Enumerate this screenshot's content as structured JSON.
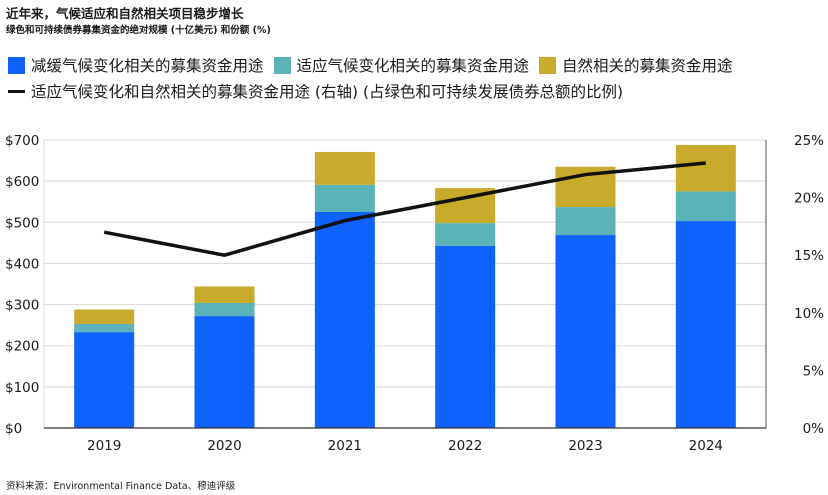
{
  "header": {
    "title": "近年来，气候适应和自然相关项目稳步增长",
    "subtitle": "绿色和可持续债券募集资金的绝对规模 (十亿美元) 和份额 (%)"
  },
  "legend": {
    "mitigation": "减缓气候变化相关的募集资金用途",
    "adaptation": "适应气候变化相关的募集资金用途",
    "nature": "自然相关的募集资金用途",
    "line": "适应气候变化和自然相关的募集资金用途 (右轴) (占绿色和可持续发展债券总额的比例)"
  },
  "source": "资料来源：Environmental Finance Data、穆迪评级",
  "colors": {
    "mitigation": "#0f62fe",
    "adaptation": "#5bb3b9",
    "nature": "#c9aa2a",
    "line": "#111111",
    "grid": "#d8d8d8"
  },
  "chart_data": {
    "type": "bar",
    "stacked": true,
    "categories": [
      "2019",
      "2020",
      "2021",
      "2022",
      "2023",
      "2024"
    ],
    "series": [
      {
        "name": "减缓气候变化相关的募集资金用途",
        "values": [
          233,
          272,
          525,
          443,
          469,
          503
        ]
      },
      {
        "name": "适应气候变化相关的募集资金用途",
        "values": [
          20,
          32,
          66,
          55,
          68,
          72
        ]
      },
      {
        "name": "自然相关的募集资金用途",
        "values": [
          35,
          40,
          80,
          85,
          98,
          113
        ]
      }
    ],
    "line_series": {
      "name": "适应气候变化和自然相关的募集资金用途 (右轴) (占绿色和可持续发展债券总额的比例)",
      "axis": "right",
      "values": [
        17,
        15,
        18,
        20,
        22,
        23
      ]
    },
    "ylim": [
      0,
      700
    ],
    "y_ticks": [
      "$0",
      "$100",
      "$200",
      "$300",
      "$400",
      "$500",
      "$600",
      "$700"
    ],
    "y2lim": [
      0,
      25
    ],
    "y2_ticks": [
      "0%",
      "5%",
      "10%",
      "15%",
      "20%",
      "25%"
    ],
    "grid": true
  }
}
